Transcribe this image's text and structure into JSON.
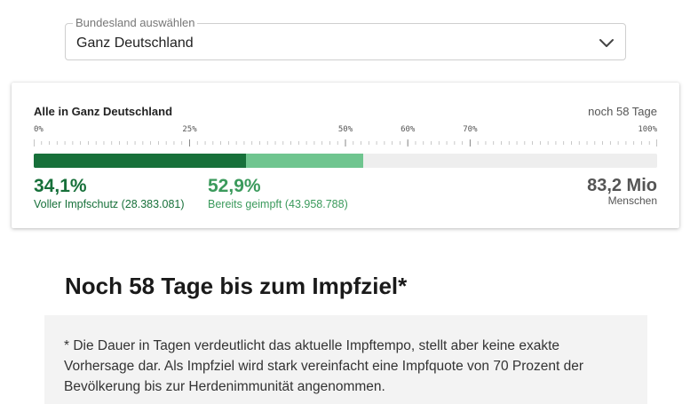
{
  "selector": {
    "legend": "Bundesland auswählen",
    "value": "Ganz Deutschland",
    "icon": "chevron-down-icon"
  },
  "card": {
    "title": "Alle in Ganz Deutschland",
    "days_left": "noch 58 Tage",
    "ticks": [
      {
        "label": "0%",
        "value": 0
      },
      {
        "label": "25%",
        "value": 25
      },
      {
        "label": "50%",
        "value": 50
      },
      {
        "label": "60%",
        "value": 60
      },
      {
        "label": "70%",
        "value": 70
      },
      {
        "label": "100%",
        "value": 100
      }
    ],
    "progress": {
      "full_percent": 34.1,
      "partial_percent": 52.9
    },
    "full": {
      "percent_label": "34,1%",
      "label": "Voller Impfschutz (28.383.081)"
    },
    "partial": {
      "percent_label": "52,9%",
      "label": "Bereits geimpft (43.958.788)"
    },
    "population": {
      "value": "83,2 Mio",
      "unit": "Menschen"
    }
  },
  "colors": {
    "full": "#17703a",
    "partial": "#6fc58f",
    "partial_text": "#3b9a5c",
    "track": "#eeeeee"
  },
  "heading": "Noch 58 Tage bis zum Impfziel*",
  "note": "* Die Dauer in Tagen verdeutlicht das aktuelle Impftempo, stellt aber keine exakte Vorhersage dar. Als Impfziel wird stark vereinfacht eine Impfquote von 70 Prozent der Bevölkerung bis zur Herdenimmunität angenommen."
}
